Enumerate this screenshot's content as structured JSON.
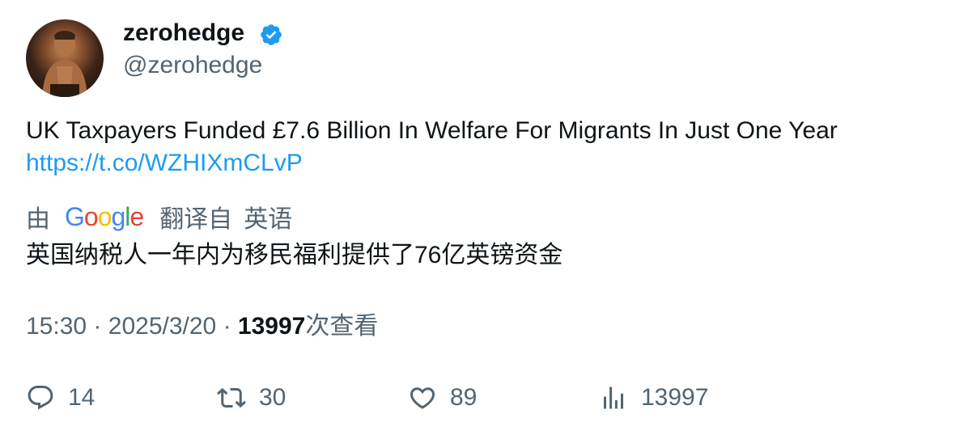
{
  "author": {
    "display_name": "zerohedge",
    "handle": "@zerohedge",
    "verified_color": "#1d9bf0"
  },
  "tweet": {
    "text": "UK Taxpayers Funded £7.6 Billion In Welfare For Migrants In Just One Year",
    "link": "https://t.co/WZHIXmCLvP",
    "link_color": "#1d9bf0"
  },
  "translation": {
    "by_label": "由",
    "provider_letters": [
      {
        "char": "G",
        "color": "#4285F4"
      },
      {
        "char": "o",
        "color": "#EA4335"
      },
      {
        "char": "o",
        "color": "#FBBC05"
      },
      {
        "char": "g",
        "color": "#4285F4"
      },
      {
        "char": "l",
        "color": "#34A853"
      },
      {
        "char": "e",
        "color": "#EA4335"
      }
    ],
    "translated_from_label": "翻译自",
    "source_language": "英语",
    "text": "英国纳税人一年内为移民福利提供了76亿英镑资金"
  },
  "meta": {
    "time": "15:30",
    "separator": "·",
    "date": "2025/3/20",
    "views_count": "13997",
    "views_label": "次查看"
  },
  "actions": {
    "replies": {
      "icon": "reply-icon",
      "count": "14"
    },
    "retweets": {
      "icon": "retweet-icon",
      "count": "30"
    },
    "likes": {
      "icon": "heart-icon",
      "count": "89"
    },
    "views": {
      "icon": "analytics-icon",
      "count": "13997"
    }
  }
}
